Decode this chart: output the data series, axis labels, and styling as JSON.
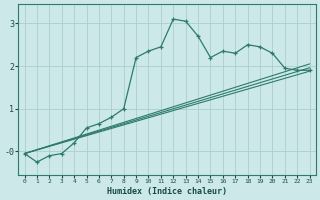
{
  "xlabel": "Humidex (Indice chaleur)",
  "background_color": "#cce8e8",
  "grid_color": "#aad0d0",
  "line_color": "#2d7a6e",
  "x_ticks": [
    0,
    1,
    2,
    3,
    4,
    5,
    6,
    7,
    8,
    9,
    10,
    11,
    12,
    13,
    14,
    15,
    16,
    17,
    18,
    19,
    20,
    21,
    22,
    23
  ],
  "y_ticks": [
    0,
    1,
    2,
    3
  ],
  "ylim": [
    -0.55,
    3.45
  ],
  "xlim": [
    -0.5,
    23.5
  ],
  "series": [
    [
      0,
      -0.05
    ],
    [
      1,
      -0.25
    ],
    [
      2,
      -0.1
    ],
    [
      3,
      -0.05
    ],
    [
      4,
      0.2
    ],
    [
      5,
      0.55
    ],
    [
      6,
      0.65
    ],
    [
      7,
      0.8
    ],
    [
      8,
      1.0
    ],
    [
      9,
      2.2
    ],
    [
      10,
      2.35
    ],
    [
      11,
      2.45
    ],
    [
      12,
      3.1
    ],
    [
      13,
      3.05
    ],
    [
      14,
      2.7
    ],
    [
      15,
      2.2
    ],
    [
      16,
      2.35
    ],
    [
      17,
      2.3
    ],
    [
      18,
      2.5
    ],
    [
      19,
      2.45
    ],
    [
      20,
      2.3
    ],
    [
      21,
      1.95
    ],
    [
      22,
      1.9
    ],
    [
      23,
      1.9
    ]
  ],
  "line1": [
    [
      0,
      -0.05
    ],
    [
      23,
      1.88
    ]
  ],
  "line2": [
    [
      0,
      -0.05
    ],
    [
      23,
      2.05
    ]
  ],
  "line3": [
    [
      0,
      -0.05
    ],
    [
      23,
      1.96
    ]
  ]
}
